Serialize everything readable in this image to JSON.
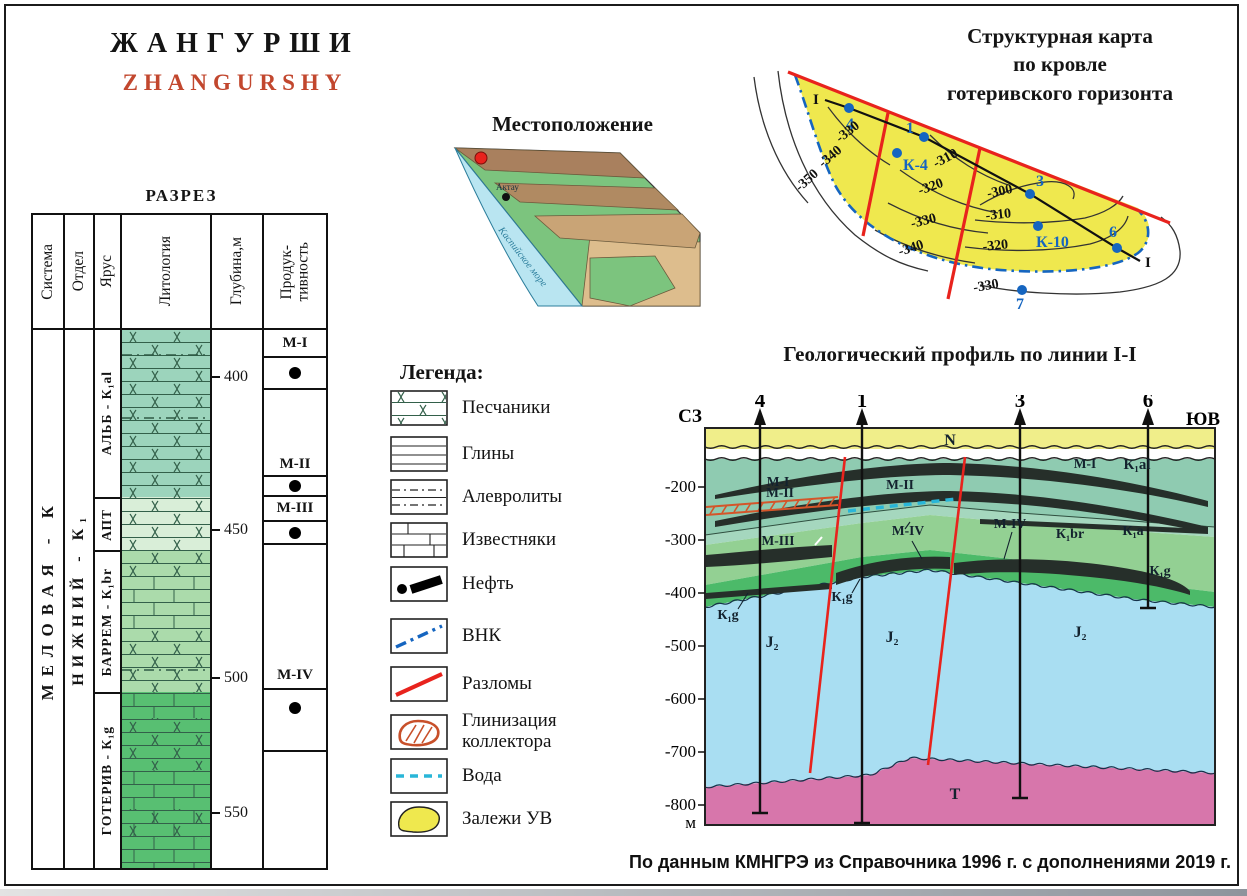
{
  "titles": {
    "field_ru": "ЖАНГУРШИ",
    "field_en": "ZHANGURSHY",
    "section": "РАЗРЕЗ",
    "location": "Местоположение",
    "struct_map_l1": "Структурная карта",
    "struct_map_l2": "по кровле",
    "struct_map_l3": "готеривского горизонта",
    "legend": "Легенда:",
    "profile": "Геологический профиль по линии I-I",
    "footer": "По данным КМНГРЭ из Справочника 1996 г. с дополнениями 2019 г."
  },
  "strat": {
    "columns": [
      "Система",
      "Отдел",
      "Ярус",
      "Литология",
      "Глубина,м",
      "Продук-\nтивность"
    ],
    "system": "МЕЛОВАЯ - К",
    "series": "НИЖНИЙ - К₁",
    "stages": [
      "АЛЬБ - К₁al",
      "АПТ",
      "БАРРЕМ - К₁br",
      "ГОТЕРИВ - К₁g"
    ],
    "depths": [
      "400",
      "450",
      "500",
      "550"
    ],
    "reservoirs": [
      "М-I",
      "М-II",
      "М-III",
      "М-IV"
    ]
  },
  "location": {
    "city": "Актау",
    "sea": "Каспийское море"
  },
  "map": {
    "line_label_left": "I",
    "line_label_right": "I",
    "wells": {
      "w4": "4",
      "w1": "1",
      "k4": "К-4",
      "w3": "3",
      "k10": "К-10",
      "w6": "6",
      "w7": "7"
    },
    "contours": {
      "c330a": "-330",
      "c340a": "-340",
      "c350": "-350",
      "c310a": "-310",
      "c320a": "-320",
      "c300": "-300",
      "c310b": "-310",
      "c330b": "-330",
      "c320b": "-320",
      "c340b": "-340",
      "c330c": "-330"
    }
  },
  "legend_items": [
    "Песчаники",
    "Глины",
    "Алевролиты",
    "Известняки",
    "Нефть",
    "ВНК",
    "Разломы",
    "Глинизация коллектора",
    "Вода",
    "Залежи УВ"
  ],
  "profile": {
    "dir_left": "СЗ",
    "dir_right": "ЮВ",
    "wells": [
      "4",
      "1",
      "3",
      "6"
    ],
    "depths": [
      "-200",
      "-300",
      "-400",
      "-500",
      "-600",
      "-700",
      "-800"
    ],
    "unit": "м",
    "units": {
      "n": "N",
      "m1l": "М-I",
      "m2l": "М-II",
      "m2m": "М-II",
      "m1r": "М-I",
      "k1al": "К₁al",
      "m3": "М-III",
      "m4m": "М-IV",
      "m4r": "М-IV",
      "k1br": "К₁br",
      "k1a": "К₁a",
      "k1gl": "К₁g",
      "k1gm": "К₁g",
      "k1gr": "К₁g",
      "j2a": "J₂",
      "j2b": "J₂",
      "j2c": "J₂",
      "t": "T"
    }
  },
  "colors": {
    "accent": "#c2472e",
    "fault_red": "#e8231d",
    "vnk_blue": "#1565c0",
    "water_cyan": "#29b6d8",
    "deposit_yellow": "#efe84e",
    "neogene": "#f0ee8a",
    "k1al_teal": "#8fcbb1",
    "apt_pale": "#d9eed8",
    "k1br_green": "#93d093",
    "k1g_green": "#4cba69",
    "j2_blue": "#a9def2",
    "t_pink": "#d776ab",
    "lens_dark": "#262f2a",
    "hatch_orange": "#d4552a"
  }
}
